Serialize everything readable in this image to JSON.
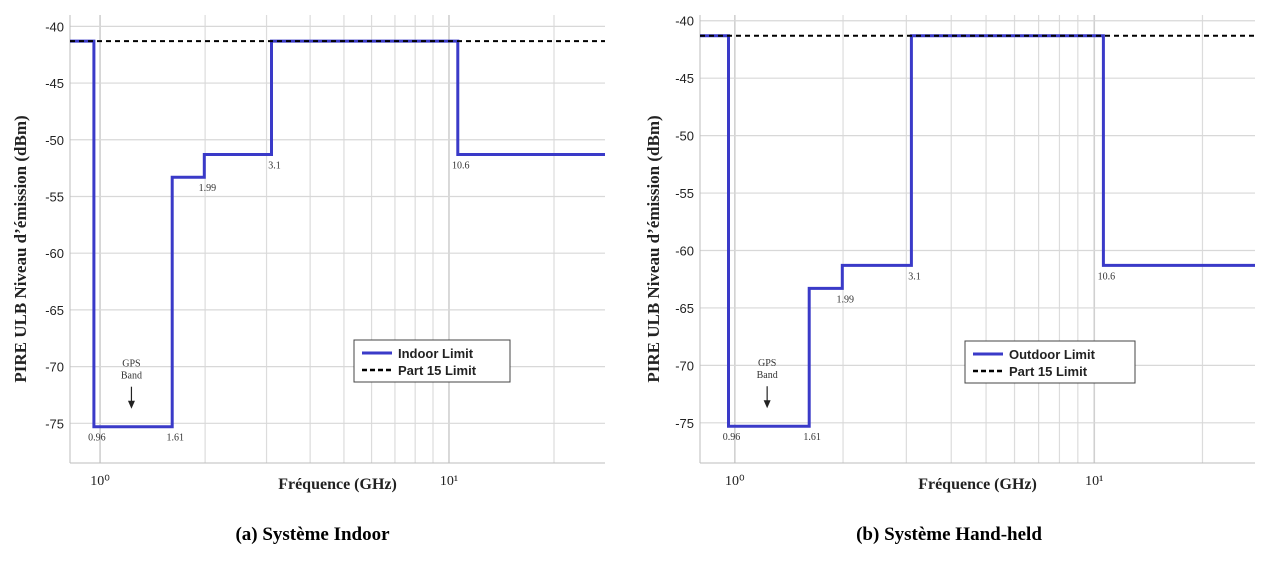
{
  "chart_data": [
    {
      "type": "line",
      "caption": "(a) Système Indoor",
      "xlabel": "Fréquence (GHz)",
      "ylabel": "PIRE ULB Niveau d’émission (dBm)",
      "x_scale": "log",
      "xlim": [
        0.82,
        28
      ],
      "ylim": [
        -78.5,
        -39
      ],
      "x_ticks": [
        1,
        10
      ],
      "x_tick_labels": [
        "10⁰",
        "10¹"
      ],
      "y_ticks": [
        -40,
        -45,
        -50,
        -55,
        -60,
        -65,
        -70,
        -75
      ],
      "y_tick_labels": [
        "-40",
        "-45",
        "-50",
        "-55",
        "-60",
        "-65",
        "-70",
        "-75"
      ],
      "grid": true,
      "legend_position": "lower-right",
      "series": [
        {
          "name": "Indoor Limit",
          "color": "#3a3ac8",
          "style": "solid",
          "x": [
            0.82,
            0.96,
            0.96,
            1.61,
            1.61,
            1.99,
            1.99,
            3.1,
            3.1,
            10.6,
            10.6,
            28
          ],
          "y": [
            -41.3,
            -41.3,
            -75.3,
            -75.3,
            -53.3,
            -53.3,
            -51.3,
            -51.3,
            -41.3,
            -41.3,
            -51.3,
            -51.3
          ]
        },
        {
          "name": "Part 15 Limit",
          "color": "#000000",
          "style": "dashed",
          "x": [
            0.82,
            28
          ],
          "y": [
            -41.3,
            -41.3
          ]
        }
      ],
      "annotations": [
        {
          "text": "0.96",
          "x": 0.96,
          "y": -75.3
        },
        {
          "text": "1.61",
          "x": 1.61,
          "y": -75.3
        },
        {
          "text": "1.99",
          "x": 1.99,
          "y": -53.3
        },
        {
          "text": "3.1",
          "x": 3.1,
          "y": -51.3
        },
        {
          "text": "10.6",
          "x": 10.6,
          "y": -51.3
        }
      ],
      "gps_label": [
        "GPS",
        "Band"
      ]
    },
    {
      "type": "line",
      "caption": "(b) Système Hand-held",
      "xlabel": "Fréquence (GHz)",
      "ylabel": "PIRE ULB Niveau d’émission (dBm)",
      "x_scale": "log",
      "xlim": [
        0.8,
        28
      ],
      "ylim": [
        -78.5,
        -39.5
      ],
      "x_ticks": [
        1,
        10
      ],
      "x_tick_labels": [
        "10⁰",
        "10¹"
      ],
      "y_ticks": [
        -40,
        -45,
        -50,
        -55,
        -60,
        -65,
        -70,
        -75
      ],
      "y_tick_labels": [
        "-40",
        "-45",
        "-50",
        "-55",
        "-60",
        "-65",
        "-70",
        "-75"
      ],
      "grid": true,
      "legend_position": "lower-right",
      "series": [
        {
          "name": "Outdoor Limit",
          "color": "#3a3ac8",
          "style": "solid",
          "x": [
            0.8,
            0.96,
            0.96,
            1.61,
            1.61,
            1.99,
            1.99,
            3.1,
            3.1,
            10.6,
            10.6,
            28
          ],
          "y": [
            -41.3,
            -41.3,
            -75.3,
            -75.3,
            -63.3,
            -63.3,
            -61.3,
            -61.3,
            -41.3,
            -41.3,
            -61.3,
            -61.3
          ]
        },
        {
          "name": "Part 15 Limit",
          "color": "#000000",
          "style": "dashed",
          "x": [
            0.8,
            28
          ],
          "y": [
            -41.3,
            -41.3
          ]
        }
      ],
      "annotations": [
        {
          "text": "0.96",
          "x": 0.96,
          "y": -75.3
        },
        {
          "text": "1.61",
          "x": 1.61,
          "y": -75.3
        },
        {
          "text": "1.99",
          "x": 1.99,
          "y": -63.3
        },
        {
          "text": "3.1",
          "x": 3.1,
          "y": -61.3
        },
        {
          "text": "10.6",
          "x": 10.6,
          "y": -61.3
        }
      ],
      "gps_label": [
        "GPS",
        "Band"
      ]
    }
  ]
}
